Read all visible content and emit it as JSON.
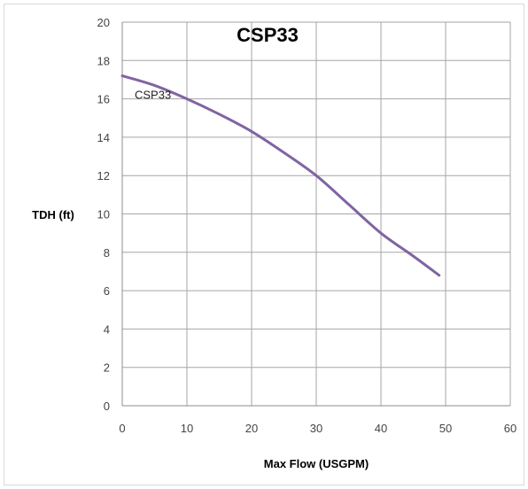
{
  "chart_data": {
    "type": "line",
    "title": "CSP33",
    "xlabel": "Max Flow (USGPM)",
    "ylabel": "TDH (ft)",
    "xlim": [
      0,
      60
    ],
    "ylim": [
      0,
      20
    ],
    "x_ticks": [
      0,
      10,
      20,
      30,
      40,
      50,
      60
    ],
    "y_ticks": [
      0,
      2,
      4,
      6,
      8,
      10,
      12,
      14,
      16,
      18,
      20
    ],
    "grid": true,
    "legend": "none",
    "series": [
      {
        "name": "CSP33",
        "color": "#8064A2",
        "x": [
          0,
          5,
          10,
          15,
          20,
          25,
          30,
          35,
          40,
          45,
          49
        ],
        "y": [
          17.2,
          16.7,
          16.0,
          15.2,
          14.3,
          13.2,
          12.0,
          10.5,
          9.0,
          7.8,
          6.8
        ]
      }
    ]
  }
}
